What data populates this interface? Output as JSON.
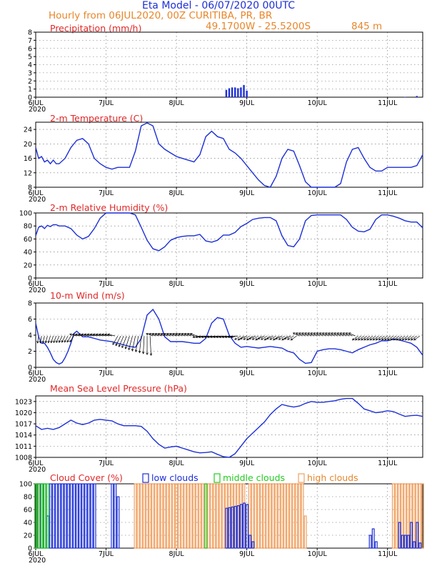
{
  "header": {
    "title": "Eta Model - 06/07/2020 00UTC",
    "subtitle": "Hourly from 06JUL2020, 00Z   CURITIBA, PR, BR",
    "coords": "49.1700W - 25.5200S",
    "elevation": "845   m"
  },
  "colors": {
    "title": "#e02828",
    "curve": "#1c2fd6",
    "low": "#1c2fd6",
    "middle": "#22cc22",
    "high": "#f0a060"
  },
  "xaxis": {
    "ticks": [
      "6JUL",
      "7JUL",
      "8JUL",
      "9JUL",
      "10JUL",
      "11JUL"
    ],
    "tick_hours": [
      0,
      24,
      48,
      72,
      96,
      120
    ],
    "year": "2020",
    "max_hour": 132
  },
  "chart_data": [
    {
      "id": "precip",
      "type": "bar",
      "title": "Precipitation (mm/h)",
      "ylim": [
        0,
        8
      ],
      "yticks": [
        "0",
        "1",
        "2",
        "3",
        "4",
        "5",
        "6",
        "7",
        "8"
      ],
      "ytick_values": [
        0,
        1,
        2,
        3,
        4,
        5,
        6,
        7,
        8
      ],
      "x": [
        65,
        66,
        67,
        68,
        69,
        70,
        71,
        72,
        126,
        130
      ],
      "values": [
        0.9,
        1.1,
        1.2,
        1.2,
        1.1,
        1.2,
        1.5,
        0.8,
        0.05,
        0.15
      ]
    },
    {
      "id": "temp",
      "type": "line",
      "title": "2-m Temperature (C)",
      "ylim": [
        8,
        26
      ],
      "yticks": [
        "8",
        "12",
        "16",
        "20",
        "24"
      ],
      "ytick_values": [
        8,
        12,
        16,
        20,
        24
      ],
      "x": [
        0,
        1,
        2,
        3,
        4,
        5,
        6,
        7,
        8,
        10,
        12,
        14,
        16,
        18,
        20,
        22,
        24,
        26,
        28,
        30,
        32,
        34,
        36,
        38,
        40,
        42,
        44,
        46,
        48,
        50,
        52,
        54,
        56,
        58,
        60,
        62,
        64,
        66,
        68,
        70,
        72,
        74,
        76,
        78,
        80,
        82,
        84,
        86,
        88,
        90,
        92,
        94,
        96,
        98,
        100,
        102,
        104,
        106,
        108,
        110,
        112,
        114,
        116,
        118,
        120,
        122,
        124,
        126,
        128,
        130,
        132
      ],
      "values": [
        19,
        16,
        16.5,
        15,
        15.5,
        14.5,
        15.5,
        14.5,
        14.5,
        16,
        19,
        21,
        21.5,
        20,
        16,
        14.5,
        13.5,
        13,
        13.5,
        13.5,
        13.5,
        18,
        25,
        25.8,
        25,
        20,
        18.5,
        17.5,
        16.5,
        16,
        15.5,
        15,
        17,
        22,
        23.5,
        22,
        21.5,
        18.5,
        17.5,
        16,
        14,
        12,
        10,
        8.5,
        7.5,
        11,
        16,
        18.5,
        18,
        14,
        9.5,
        7.5,
        6.5,
        5.5,
        5.5,
        6,
        9,
        15,
        18.5,
        19,
        16,
        13.5,
        12.5,
        12.5,
        13.5,
        13.5,
        13.5,
        13.5,
        13.5,
        14,
        17
      ]
    },
    {
      "id": "rh",
      "type": "line",
      "title": "2-m Relative Humidity (%)",
      "ylim": [
        0,
        100
      ],
      "yticks": [
        "0",
        "20",
        "40",
        "60",
        "80",
        "100"
      ],
      "ytick_values": [
        0,
        20,
        40,
        60,
        80,
        100
      ],
      "x": [
        0,
        1,
        2,
        3,
        4,
        5,
        6,
        7,
        8,
        10,
        12,
        14,
        16,
        18,
        20,
        22,
        24,
        26,
        28,
        30,
        32,
        34,
        36,
        38,
        40,
        42,
        44,
        46,
        48,
        50,
        52,
        54,
        56,
        58,
        60,
        62,
        64,
        66,
        68,
        70,
        72,
        74,
        76,
        78,
        80,
        82,
        84,
        86,
        88,
        90,
        92,
        94,
        96,
        98,
        100,
        102,
        104,
        106,
        108,
        110,
        112,
        114,
        116,
        118,
        120,
        122,
        124,
        126,
        128,
        130,
        132
      ],
      "values": [
        65,
        78,
        80,
        76,
        81,
        79,
        82,
        82,
        80,
        80,
        76,
        66,
        60,
        64,
        76,
        92,
        100,
        100,
        100,
        100,
        100,
        97,
        78,
        58,
        45,
        42,
        48,
        58,
        62,
        64,
        65,
        65,
        67,
        57,
        55,
        58,
        66,
        66,
        70,
        79,
        84,
        90,
        92,
        93,
        93,
        88,
        65,
        50,
        48,
        60,
        88,
        96,
        97,
        97,
        97,
        97,
        97,
        90,
        78,
        72,
        71,
        75,
        90,
        97,
        97,
        95,
        92,
        88,
        86,
        86,
        77
      ]
    },
    {
      "id": "wind",
      "type": "line",
      "title": "10-m Wind (m/s)",
      "ylim": [
        0,
        8
      ],
      "yticks": [
        "0",
        "2",
        "4",
        "6",
        "8"
      ],
      "ytick_values": [
        0,
        2,
        4,
        6,
        8
      ],
      "x": [
        0,
        1,
        2,
        3,
        4,
        5,
        6,
        7,
        8,
        9,
        10,
        11,
        12,
        13,
        14,
        16,
        18,
        20,
        22,
        24,
        26,
        28,
        30,
        32,
        34,
        36,
        38,
        40,
        42,
        44,
        46,
        48,
        50,
        52,
        54,
        56,
        58,
        60,
        62,
        64,
        66,
        68,
        70,
        72,
        74,
        76,
        78,
        80,
        82,
        84,
        86,
        88,
        90,
        92,
        94,
        96,
        98,
        100,
        102,
        104,
        106,
        108,
        110,
        112,
        114,
        116,
        118,
        120,
        122,
        124,
        126,
        128,
        130,
        132
      ],
      "values": [
        5.5,
        3.8,
        3.0,
        3.0,
        2.5,
        1.8,
        1.0,
        0.6,
        0.4,
        0.6,
        1.2,
        2.0,
        3.0,
        4.2,
        4.5,
        3.8,
        3.8,
        3.6,
        3.4,
        3.3,
        3.2,
        3.0,
        2.8,
        2.6,
        2.5,
        3.6,
        6.5,
        7.2,
        6.0,
        3.8,
        3.2,
        3.2,
        3.2,
        3.1,
        3.0,
        3.0,
        3.6,
        5.5,
        6.2,
        6.0,
        4.0,
        3.0,
        2.5,
        2.6,
        2.5,
        2.4,
        2.5,
        2.6,
        2.5,
        2.4,
        2.0,
        1.8,
        1.0,
        0.5,
        0.6,
        2.0,
        2.2,
        2.3,
        2.3,
        2.2,
        2.0,
        1.8,
        2.2,
        2.5,
        2.8,
        3.0,
        3.3,
        3.3,
        3.5,
        3.4,
        3.2,
        3.0,
        2.5,
        1.5
      ]
    },
    {
      "id": "mslp",
      "type": "line",
      "title": "Mean Sea Level Pressure (hPa)",
      "ylim": [
        1008,
        1024.5
      ],
      "yticks": [
        "1008",
        "1011",
        "1014",
        "1017",
        "1020",
        "1023"
      ],
      "ytick_values": [
        1008,
        1011,
        1014,
        1017,
        1020,
        1023
      ],
      "x": [
        0,
        2,
        4,
        6,
        8,
        10,
        12,
        14,
        16,
        18,
        20,
        22,
        24,
        26,
        28,
        30,
        32,
        34,
        36,
        38,
        40,
        42,
        44,
        46,
        48,
        50,
        52,
        54,
        56,
        58,
        60,
        62,
        64,
        66,
        68,
        70,
        72,
        74,
        76,
        78,
        80,
        82,
        84,
        86,
        88,
        90,
        92,
        94,
        96,
        98,
        100,
        102,
        104,
        106,
        108,
        110,
        112,
        114,
        116,
        118,
        120,
        122,
        124,
        126,
        128,
        130,
        132
      ],
      "values": [
        1016.5,
        1015.5,
        1015.8,
        1015.5,
        1016,
        1017,
        1018,
        1017.2,
        1016.8,
        1017.2,
        1018,
        1018.2,
        1018,
        1017.8,
        1017,
        1016.5,
        1016.5,
        1016.5,
        1016.3,
        1015,
        1013,
        1011.5,
        1010.5,
        1010.8,
        1011,
        1010.5,
        1010,
        1009.5,
        1009.2,
        1009.3,
        1009.5,
        1008.8,
        1008.2,
        1008,
        1009,
        1011,
        1013,
        1014.5,
        1016,
        1017.5,
        1019.5,
        1021,
        1022.2,
        1021.8,
        1021.5,
        1021.8,
        1022.5,
        1023,
        1022.8,
        1022.8,
        1023,
        1023.2,
        1023.6,
        1023.8,
        1023.8,
        1022.5,
        1021,
        1020.5,
        1020,
        1020.2,
        1020.5,
        1020.3,
        1019.6,
        1019,
        1019.2,
        1019.3,
        1019
      ]
    },
    {
      "id": "clouds",
      "type": "bar",
      "title": "Cloud Cover (%)",
      "ylim": [
        0,
        100
      ],
      "yticks": [
        "0",
        "20",
        "40",
        "60",
        "80",
        "100"
      ],
      "ytick_values": [
        0,
        20,
        40,
        60,
        80,
        100
      ],
      "legend": [
        "low clouds",
        "middle clouds",
        "high clouds"
      ],
      "low": {
        "x": [
          0,
          1,
          2,
          3,
          4,
          5,
          6,
          7,
          8,
          9,
          10,
          11,
          12,
          13,
          14,
          15,
          16,
          17,
          18,
          19,
          20,
          26,
          27,
          28,
          29,
          30,
          31,
          32,
          33,
          34,
          35,
          36,
          37,
          38,
          39,
          40,
          41,
          42,
          43,
          44,
          45,
          46,
          47,
          48,
          49,
          50,
          51,
          52,
          53,
          54,
          55,
          56,
          57,
          58,
          59,
          60,
          61,
          62,
          63,
          64,
          65,
          66,
          67,
          68,
          69,
          70,
          71,
          72,
          73,
          74,
          114,
          115,
          116,
          124,
          125,
          126,
          127,
          128,
          129,
          130,
          131
        ],
        "values": [
          100,
          100,
          100,
          100,
          50,
          100,
          100,
          100,
          100,
          100,
          100,
          100,
          100,
          100,
          100,
          100,
          100,
          100,
          100,
          100,
          100,
          100,
          100,
          80,
          0,
          0,
          0,
          0,
          0,
          0,
          0,
          0,
          0,
          0,
          0,
          0,
          0,
          0,
          0,
          0,
          0,
          0,
          0,
          0,
          0,
          0,
          0,
          0,
          0,
          0,
          0,
          0,
          0,
          0,
          0,
          0,
          0,
          0,
          0,
          0,
          62,
          63,
          64,
          65,
          66,
          68,
          70,
          68,
          20,
          10,
          20,
          30,
          10,
          40,
          20,
          20,
          20,
          40,
          10,
          40,
          8
        ]
      },
      "middle": {
        "x": [
          0,
          1,
          2,
          3,
          4,
          58
        ],
        "values": [
          100,
          100,
          100,
          100,
          100,
          100
        ]
      },
      "high": {
        "x": [
          0,
          1,
          2,
          34,
          35,
          36,
          37,
          38,
          39,
          40,
          41,
          42,
          43,
          44,
          45,
          46,
          47,
          48,
          49,
          50,
          51,
          52,
          53,
          54,
          55,
          56,
          57,
          58,
          59,
          60,
          61,
          62,
          63,
          64,
          65,
          66,
          67,
          68,
          69,
          70,
          71,
          73,
          74,
          75,
          76,
          77,
          78,
          79,
          80,
          81,
          82,
          83,
          84,
          85,
          86,
          87,
          88,
          89,
          90,
          91,
          92,
          122,
          123,
          124,
          125,
          126,
          127,
          128,
          129,
          130,
          131,
          132
        ],
        "values": [
          100,
          100,
          100,
          100,
          100,
          100,
          100,
          100,
          100,
          100,
          100,
          100,
          100,
          100,
          100,
          100,
          100,
          100,
          100,
          100,
          100,
          100,
          100,
          100,
          100,
          100,
          100,
          100,
          100,
          100,
          100,
          100,
          100,
          100,
          100,
          100,
          100,
          100,
          100,
          100,
          100,
          100,
          100,
          100,
          100,
          100,
          100,
          100,
          100,
          100,
          100,
          100,
          100,
          100,
          100,
          100,
          100,
          100,
          100,
          100,
          50,
          100,
          100,
          100,
          100,
          100,
          100,
          100,
          100,
          100,
          100,
          100
        ]
      }
    }
  ]
}
